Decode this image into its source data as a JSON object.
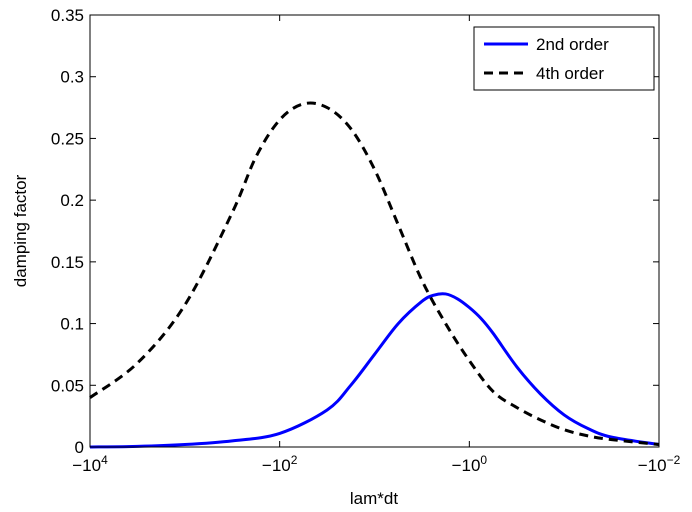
{
  "chart_data": {
    "type": "line",
    "title": "",
    "xlabel": "lam*dt",
    "ylabel": "damping factor",
    "x_scale": "negative-log",
    "xlim": [
      -10000,
      -0.01
    ],
    "ylim": [
      0,
      0.35
    ],
    "x_ticks": [
      {
        "value": -10000,
        "base": "−10",
        "exp": "4"
      },
      {
        "value": -100,
        "base": "−10",
        "exp": "2"
      },
      {
        "value": -1,
        "base": "−10",
        "exp": "0"
      },
      {
        "value": -0.01,
        "base": "−10",
        "exp": "−2"
      }
    ],
    "y_ticks": [
      0,
      0.05,
      0.1,
      0.15,
      0.2,
      0.25,
      0.3,
      0.35
    ],
    "y_tick_labels": [
      "0",
      "0.05",
      "0.1",
      "0.15",
      "0.2",
      "0.25",
      "0.3",
      "0.35"
    ],
    "grid": false,
    "legend_position": "top-right",
    "series": [
      {
        "name": "2nd order",
        "color": "#0000ff",
        "style": "solid",
        "x": [
          -10000,
          -3162,
          -1000,
          -316,
          -100,
          -31.6,
          -17.8,
          -10,
          -5.62,
          -3.16,
          -2.37,
          -1.78,
          -1.33,
          -1,
          -0.75,
          -0.56,
          -0.316,
          -0.178,
          -0.1,
          -0.0562,
          -0.0316,
          -0.01
        ],
        "y": [
          0.0,
          0.0005,
          0.002,
          0.005,
          0.011,
          0.03,
          0.05,
          0.075,
          0.1,
          0.118,
          0.123,
          0.124,
          0.12,
          0.113,
          0.104,
          0.092,
          0.065,
          0.043,
          0.026,
          0.015,
          0.008,
          0.002
        ]
      },
      {
        "name": "4th order",
        "color": "#000000",
        "style": "dashed",
        "x": [
          -10000,
          -3162,
          -1000,
          -316,
          -178,
          -100,
          -56.2,
          -31.6,
          -17.8,
          -10,
          -5.62,
          -3.16,
          -1.78,
          -1,
          -0.562,
          -0.316,
          -0.178,
          -0.1,
          -0.0562,
          -0.0316,
          -0.01
        ],
        "y": [
          0.04,
          0.068,
          0.115,
          0.19,
          0.235,
          0.265,
          0.278,
          0.275,
          0.258,
          0.225,
          0.18,
          0.135,
          0.1,
          0.07,
          0.045,
          0.032,
          0.022,
          0.014,
          0.009,
          0.006,
          0.002
        ]
      }
    ]
  }
}
